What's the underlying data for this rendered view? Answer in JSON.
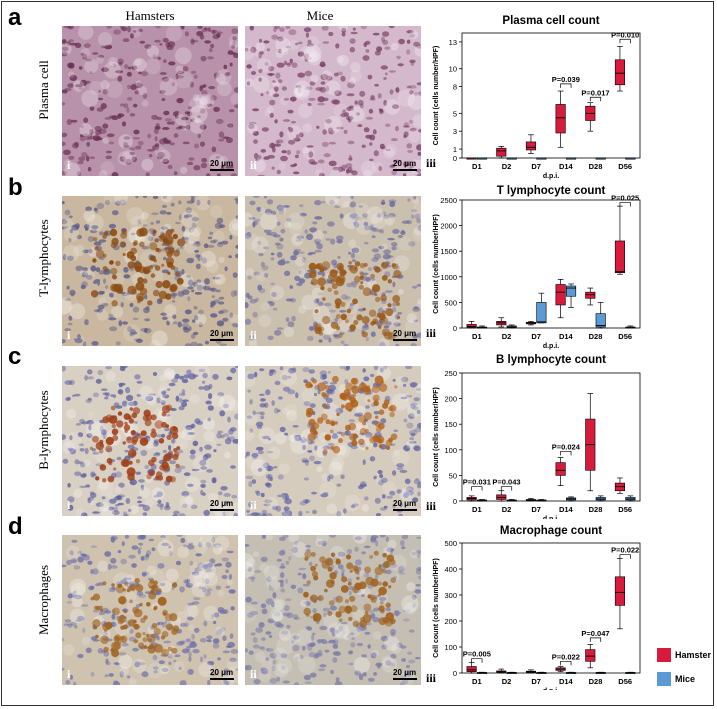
{
  "columns": {
    "hamsters": "Hamsters",
    "mice": "Mice"
  },
  "panels": [
    {
      "letter": "a",
      "row_label": "Plasma cell"
    },
    {
      "letter": "b",
      "row_label": "T-lymphocytes"
    },
    {
      "letter": "c",
      "row_label": "B-lymphocytes"
    },
    {
      "letter": "d",
      "row_label": "Macrophages"
    }
  ],
  "subpanel_tags": {
    "hamster": "i",
    "mice": "ii",
    "chart": "iii"
  },
  "scale_bar": "20 μm",
  "colors": {
    "hamster": "#d81b3c",
    "mice": "#5b9bd5",
    "tissue_pink": "#c9a3b8",
    "ihc_brown": "#a0621f",
    "hema_blue": "#6b6fa8"
  },
  "legend": [
    {
      "name": "Hamster",
      "color": "#d81b3c"
    },
    {
      "name": "Mice",
      "color": "#5b9bd5"
    }
  ],
  "chart_data": [
    {
      "type": "box",
      "title": "Plasma cell  count",
      "ylabel": "Cell count (cells number/HPF)",
      "xlabel": "d.p.i.",
      "categories": [
        "D1",
        "D2",
        "D7",
        "D14",
        "D28",
        "D56"
      ],
      "ylim": [
        0,
        14
      ],
      "yticks": [
        "0",
        "1",
        "3",
        "5",
        "8",
        "10",
        "13"
      ],
      "series": [
        {
          "name": "Hamster",
          "boxes": [
            {
              "min": 0,
              "q1": 0,
              "median": 0,
              "q3": 0,
              "max": 0
            },
            {
              "min": 0,
              "q1": 0.2,
              "median": 0.8,
              "q3": 1.1,
              "max": 1.3
            },
            {
              "min": 0.5,
              "q1": 0.9,
              "median": 1.2,
              "q3": 1.8,
              "max": 2.6
            },
            {
              "min": 1.2,
              "q1": 2.8,
              "median": 4.5,
              "q3": 6,
              "max": 7.5
            },
            {
              "min": 3,
              "q1": 4.2,
              "median": 5,
              "q3": 5.8,
              "max": 6.2
            },
            {
              "min": 7.5,
              "q1": 8.2,
              "median": 9.5,
              "q3": 11,
              "max": 12.5
            }
          ]
        },
        {
          "name": "Mice",
          "boxes": [
            {
              "min": 0,
              "q1": 0,
              "median": 0,
              "q3": 0,
              "max": 0
            },
            {
              "min": 0,
              "q1": 0,
              "median": 0,
              "q3": 0,
              "max": 0
            },
            {
              "min": 0,
              "q1": 0,
              "median": 0,
              "q3": 0,
              "max": 0
            },
            {
              "min": 0,
              "q1": 0,
              "median": 0,
              "q3": 0,
              "max": 0
            },
            {
              "min": 0,
              "q1": 0,
              "median": 0,
              "q3": 0,
              "max": 0
            },
            {
              "min": 0,
              "q1": 0,
              "median": 0,
              "q3": 0,
              "max": 0
            }
          ]
        }
      ],
      "annotations": [
        {
          "category": "D14",
          "text": "P=0.039",
          "y": 8.3
        },
        {
          "category": "D28",
          "text": "P=0.017",
          "y": 6.8
        },
        {
          "category": "D56",
          "text": "P=0.010",
          "y": 13.3
        }
      ]
    },
    {
      "type": "box",
      "title": "T lymphocyte  count",
      "ylabel": "Cell count (cells number/HPF)",
      "xlabel": "d.p.i.",
      "categories": [
        "D1",
        "D2",
        "D7",
        "D14",
        "D28",
        "D56"
      ],
      "ylim": [
        0,
        2500
      ],
      "yticks": [
        "0",
        "500",
        "1000",
        "1500",
        "2000",
        "2500"
      ],
      "series": [
        {
          "name": "Hamster",
          "boxes": [
            {
              "min": 0,
              "q1": 10,
              "median": 30,
              "q3": 70,
              "max": 130
            },
            {
              "min": 20,
              "q1": 60,
              "median": 100,
              "q3": 130,
              "max": 200
            },
            {
              "min": 60,
              "q1": 80,
              "median": 100,
              "q3": 110,
              "max": 130
            },
            {
              "min": 200,
              "q1": 450,
              "median": 700,
              "q3": 850,
              "max": 950
            },
            {
              "min": 450,
              "q1": 580,
              "median": 650,
              "q3": 700,
              "max": 780
            },
            {
              "min": 1050,
              "q1": 1080,
              "median": 1100,
              "q3": 1700,
              "max": 2380
            }
          ]
        },
        {
          "name": "Mice",
          "boxes": [
            {
              "min": 0,
              "q1": 5,
              "median": 10,
              "q3": 20,
              "max": 40
            },
            {
              "min": 0,
              "q1": 10,
              "median": 20,
              "q3": 40,
              "max": 60
            },
            {
              "min": 100,
              "q1": 100,
              "median": 120,
              "q3": 500,
              "max": 680
            },
            {
              "min": 400,
              "q1": 620,
              "median": 780,
              "q3": 820,
              "max": 860
            },
            {
              "min": 0,
              "q1": 20,
              "median": 50,
              "q3": 280,
              "max": 500
            },
            {
              "min": 0,
              "q1": 5,
              "median": 10,
              "q3": 20,
              "max": 40
            }
          ]
        }
      ],
      "annotations": [
        {
          "category": "D56",
          "text": "P=0.025",
          "y": 2450
        }
      ]
    },
    {
      "type": "box",
      "title": "B lymphocyte  count",
      "ylabel": "Cell count (cells number/HPF)",
      "xlabel": "d.p.i.",
      "categories": [
        "D1",
        "D2",
        "D7",
        "D14",
        "D28",
        "D56"
      ],
      "ylim": [
        0,
        250
      ],
      "yticks": [
        "0",
        "50",
        "100",
        "150",
        "200",
        "250"
      ],
      "series": [
        {
          "name": "Hamster",
          "boxes": [
            {
              "min": 0,
              "q1": 2,
              "median": 5,
              "q3": 7,
              "max": 10
            },
            {
              "min": 0,
              "q1": 3,
              "median": 7,
              "q3": 12,
              "max": 20
            },
            {
              "min": 0,
              "q1": 1,
              "median": 2,
              "q3": 3,
              "max": 5
            },
            {
              "min": 30,
              "q1": 50,
              "median": 60,
              "q3": 75,
              "max": 85
            },
            {
              "min": 20,
              "q1": 60,
              "median": 110,
              "q3": 160,
              "max": 210
            },
            {
              "min": 15,
              "q1": 20,
              "median": 28,
              "q3": 35,
              "max": 45
            }
          ]
        },
        {
          "name": "Mice",
          "boxes": [
            {
              "min": 0,
              "q1": 0,
              "median": 1,
              "q3": 2,
              "max": 3
            },
            {
              "min": 0,
              "q1": 0,
              "median": 1,
              "q3": 2,
              "max": 3
            },
            {
              "min": 0,
              "q1": 0,
              "median": 1,
              "q3": 2,
              "max": 3
            },
            {
              "min": 0,
              "q1": 2,
              "median": 4,
              "q3": 6,
              "max": 8
            },
            {
              "min": 0,
              "q1": 2,
              "median": 4,
              "q3": 7,
              "max": 10
            },
            {
              "min": 0,
              "q1": 2,
              "median": 4,
              "q3": 7,
              "max": 10
            }
          ]
        }
      ],
      "annotations": [
        {
          "category": "D1",
          "text": "P=0.031",
          "y": 28
        },
        {
          "category": "D2",
          "text": "P=0.043",
          "y": 28
        },
        {
          "category": "D14",
          "text": "P=0.024",
          "y": 97
        }
      ]
    },
    {
      "type": "box",
      "title": "Macrophage  count",
      "ylabel": "Cell count (cells number/HPF)",
      "xlabel": "d.p.i.",
      "categories": [
        "D1",
        "D2",
        "D7",
        "D14",
        "D28",
        "D56"
      ],
      "ylim": [
        0,
        500
      ],
      "yticks": [
        "0",
        "100",
        "200",
        "300",
        "400",
        "500"
      ],
      "series": [
        {
          "name": "Hamster",
          "boxes": [
            {
              "min": 0,
              "q1": 5,
              "median": 12,
              "q3": 25,
              "max": 40
            },
            {
              "min": 0,
              "q1": 2,
              "median": 5,
              "q3": 8,
              "max": 15
            },
            {
              "min": 0,
              "q1": 2,
              "median": 4,
              "q3": 7,
              "max": 12
            },
            {
              "min": 5,
              "q1": 10,
              "median": 15,
              "q3": 20,
              "max": 25
            },
            {
              "min": 20,
              "q1": 45,
              "median": 65,
              "q3": 90,
              "max": 110
            },
            {
              "min": 170,
              "q1": 260,
              "median": 310,
              "q3": 370,
              "max": 440
            }
          ]
        },
        {
          "name": "Mice",
          "boxes": [
            {
              "min": 0,
              "q1": 0,
              "median": 1,
              "q3": 2,
              "max": 3
            },
            {
              "min": 0,
              "q1": 0,
              "median": 1,
              "q3": 2,
              "max": 3
            },
            {
              "min": 0,
              "q1": 0,
              "median": 1,
              "q3": 2,
              "max": 3
            },
            {
              "min": 0,
              "q1": 0,
              "median": 1,
              "q3": 2,
              "max": 3
            },
            {
              "min": 0,
              "q1": 0,
              "median": 1,
              "q3": 2,
              "max": 3
            },
            {
              "min": 0,
              "q1": 0,
              "median": 1,
              "q3": 2,
              "max": 3
            }
          ]
        }
      ],
      "annotations": [
        {
          "category": "D1",
          "text": "P=0.005",
          "y": 55
        },
        {
          "category": "D14",
          "text": "P=0.022",
          "y": 45
        },
        {
          "category": "D28",
          "text": "P=0.047",
          "y": 135
        },
        {
          "category": "D56",
          "text": "P=0.022",
          "y": 455
        }
      ]
    }
  ]
}
